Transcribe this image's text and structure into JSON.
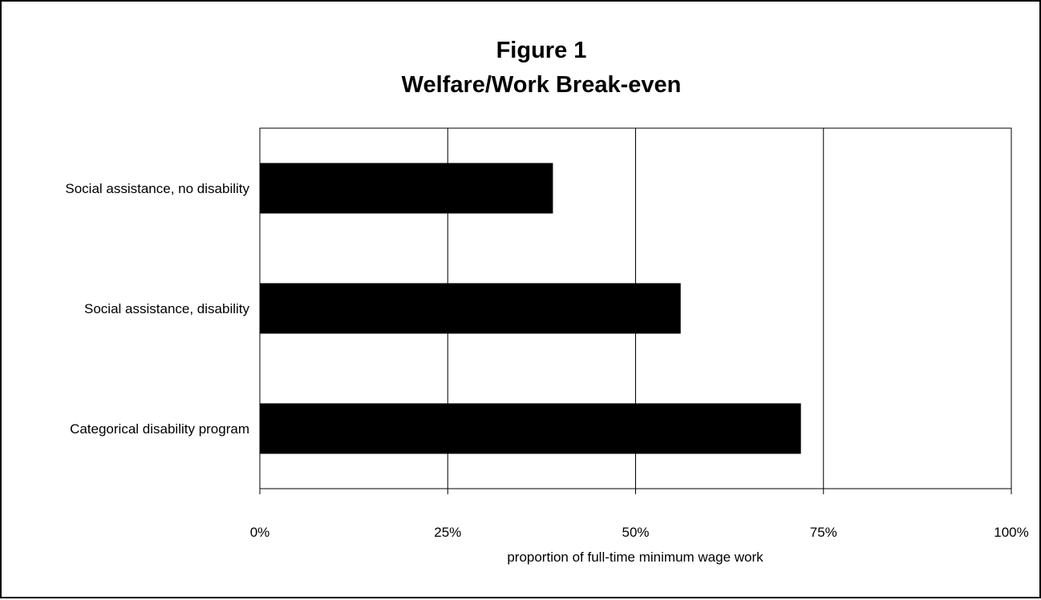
{
  "chart_data": {
    "type": "bar",
    "orientation": "horizontal",
    "title_lines": [
      "Figure 1",
      "Welfare/Work Break-even"
    ],
    "categories": [
      "Social assistance, no disability",
      "Social assistance, disability",
      "Categorical disability program"
    ],
    "values": [
      0.39,
      0.56,
      0.72
    ],
    "xlabel": "proportion of full-time minimum wage work",
    "ylabel": "",
    "xlim": [
      0,
      1
    ],
    "x_ticks": [
      0,
      0.25,
      0.5,
      0.75,
      1
    ],
    "x_tick_labels": [
      "0%",
      "25%",
      "50%",
      "75%",
      "100%"
    ],
    "grid": "vertical",
    "legend": "none",
    "bar_color": "#000000"
  }
}
